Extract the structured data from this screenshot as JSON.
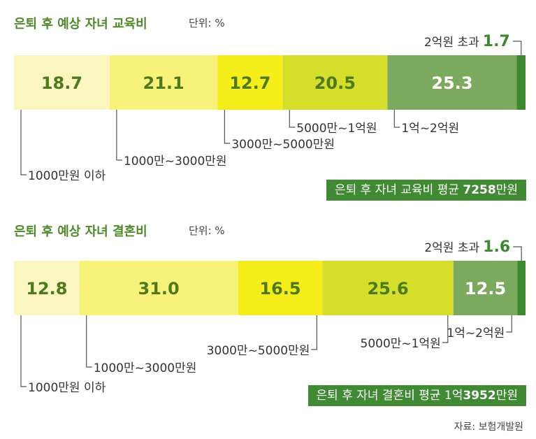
{
  "chart_data": [
    {
      "type": "bar",
      "stacked": true,
      "orientation": "horizontal",
      "title": "은퇴 후 예상 자녀 교육비",
      "unit_label": "단위: %",
      "categories": [
        "1000만원 이하",
        "1000만~3000만원",
        "3000만~5000만원",
        "5000만~1억원",
        "1억~2억원",
        "2억원 초과"
      ],
      "values": [
        18.7,
        21.1,
        12.7,
        20.5,
        25.3,
        1.7
      ],
      "value_labels": [
        "18.7",
        "21.1",
        "12.7",
        "20.5",
        "25.3",
        "1.7"
      ],
      "colors": [
        "#fbf6c0",
        "#f9f27a",
        "#f5ee1a",
        "#d6de2c",
        "#7ba95e",
        "#3d8a2e"
      ],
      "summary": {
        "label": "은퇴 후 자녀 교육비  평균 ",
        "value": "7258",
        "unit": "만원"
      }
    },
    {
      "type": "bar",
      "stacked": true,
      "orientation": "horizontal",
      "title": "은퇴 후 예상 자녀 결혼비",
      "unit_label": "단위: %",
      "categories": [
        "1000만원 이하",
        "1000만~3000만원",
        "3000만~5000만원",
        "5000만~1억원",
        "1억~2억원",
        "2억원 초과"
      ],
      "values": [
        12.8,
        31.0,
        16.5,
        25.6,
        12.5,
        1.6
      ],
      "value_labels": [
        "12.8",
        "31.0",
        "16.5",
        "25.6",
        "12.5",
        "1.6"
      ],
      "colors": [
        "#fbf6c0",
        "#f9f27a",
        "#f5ee1a",
        "#d6de2c",
        "#7ba95e",
        "#3d8a2e"
      ],
      "summary": {
        "label": "은퇴 후 자녀 결혼비  평균 1억",
        "value": "3952",
        "unit": "만원"
      }
    }
  ],
  "source": "자료: 보험개발원"
}
